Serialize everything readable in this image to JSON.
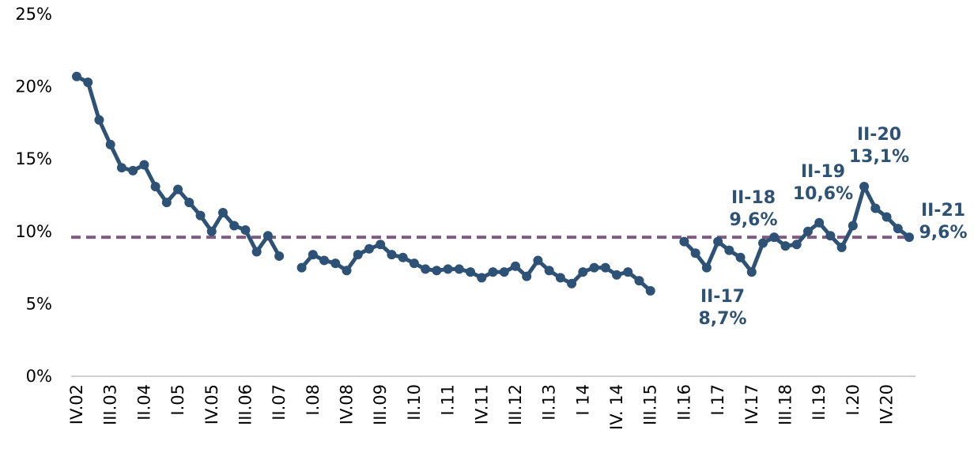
{
  "chart_data": {
    "type": "line",
    "categories": [
      "IV.02",
      null,
      null,
      "III.03",
      null,
      null,
      "II.04",
      null,
      null,
      "I.05",
      null,
      null,
      "IV.05",
      null,
      null,
      "III.06",
      null,
      null,
      "II.07",
      null,
      null,
      "I.08",
      null,
      null,
      "IV.08",
      null,
      null,
      "III.09",
      null,
      null,
      "II.10",
      null,
      null,
      "I.11",
      null,
      null,
      "IV.11",
      null,
      null,
      "III.12",
      null,
      null,
      "II.13",
      null,
      null,
      "I 14",
      null,
      null,
      "IV. 14",
      null,
      null,
      "III.15",
      null,
      null,
      "II.16",
      null,
      null,
      "I.17",
      null,
      null,
      "IV.17",
      null,
      null,
      "III.18",
      null,
      null,
      "II.19",
      null,
      null,
      "I.20",
      null,
      null,
      "IV.20",
      null,
      null
    ],
    "series": [
      {
        "color": "#2d5275",
        "values": [
          20.7,
          20.3,
          17.7,
          16.0,
          14.4,
          14.2,
          14.6,
          13.1,
          12.0,
          12.9,
          12.0,
          11.1,
          10.0,
          11.3,
          10.4,
          10.1,
          8.6,
          9.7,
          8.3,
          null,
          7.5,
          8.4,
          8.0,
          7.8,
          7.3,
          8.4,
          8.8,
          9.1,
          8.4,
          8.2,
          7.8,
          7.4,
          7.3,
          7.4,
          7.4,
          7.2,
          6.8,
          7.2,
          7.2,
          7.6,
          6.9,
          8.0,
          7.3,
          6.8,
          6.4,
          7.2,
          7.5,
          7.5,
          7.0,
          7.2,
          6.6,
          5.9,
          null,
          null,
          9.3,
          8.5,
          7.5,
          9.3,
          8.7,
          8.2,
          7.2,
          9.2,
          9.6,
          9.0,
          9.1,
          10.0,
          10.6,
          9.7,
          8.9,
          10.4,
          13.1,
          11.6,
          11.0,
          10.2,
          9.6
        ]
      }
    ],
    "reference_line": {
      "value": 9.6,
      "color": "#7f5a83"
    },
    "ylim": [
      0,
      25
    ],
    "yticks": [
      {
        "value": 0,
        "label": "0%"
      },
      {
        "value": 5,
        "label": "5%"
      },
      {
        "value": 10,
        "label": "10%"
      },
      {
        "value": 15,
        "label": "15%"
      },
      {
        "value": 20,
        "label": "20%"
      },
      {
        "value": 25,
        "label": "25%"
      }
    ],
    "annotations": [
      [
        "II-17",
        "8,7%"
      ],
      [
        "II-18",
        "9,6%"
      ],
      [
        "II-19",
        "10,6%"
      ],
      [
        "II-20",
        "13,1%"
      ],
      [
        "II-21",
        "9,6%"
      ]
    ]
  }
}
